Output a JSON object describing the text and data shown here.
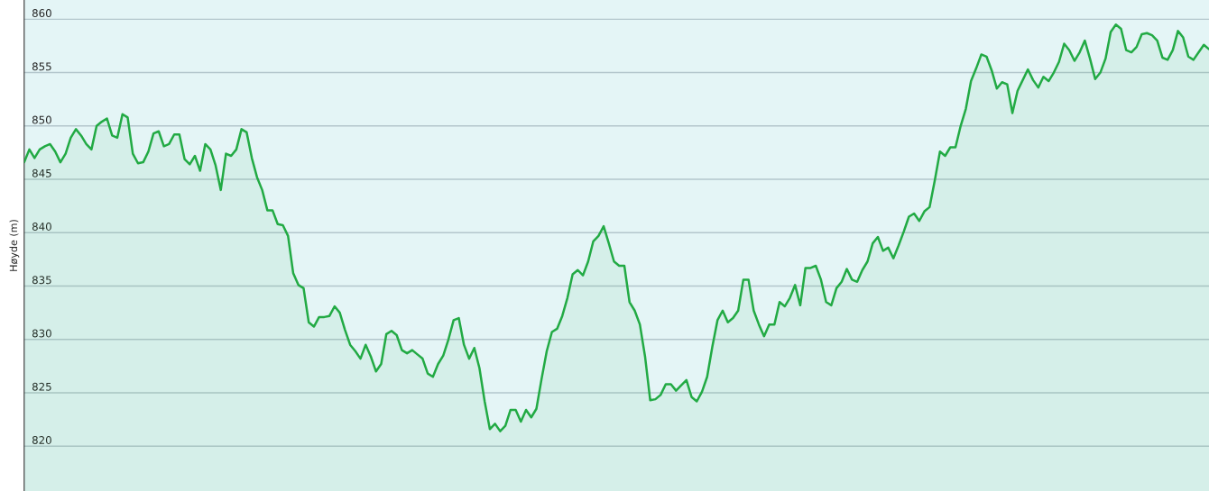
{
  "chart_data": {
    "type": "area",
    "ylabel": "Høyde (m)",
    "categories": [
      null,
      null,
      null,
      null,
      null,
      null,
      null,
      null,
      null,
      null,
      null,
      null,
      null,
      null,
      null,
      null,
      null,
      null,
      null,
      null,
      null,
      null,
      null,
      null,
      null,
      null,
      null,
      null,
      null,
      null,
      null,
      null,
      null,
      null,
      null,
      null,
      null,
      null,
      null,
      null,
      null,
      null,
      null,
      null,
      null,
      null,
      null,
      null,
      null,
      null,
      null,
      null,
      null,
      null,
      null,
      null,
      null,
      null,
      null,
      null,
      null,
      null,
      null,
      null,
      null,
      null,
      null,
      null,
      null,
      null,
      null,
      null,
      null,
      null,
      null,
      null,
      null,
      null,
      null,
      null,
      null,
      null,
      null,
      null,
      null,
      null,
      null,
      null,
      null,
      null,
      null,
      null,
      null,
      null,
      null,
      null,
      null,
      null,
      null,
      null,
      null,
      null,
      null,
      null,
      null,
      null,
      null,
      null,
      null,
      null,
      null,
      null,
      null,
      null,
      null,
      null,
      null,
      null,
      null,
      null,
      null,
      null,
      null,
      null,
      null,
      null,
      null,
      null,
      null,
      null,
      null,
      null,
      null,
      null,
      null,
      null,
      null,
      null,
      null,
      null,
      null,
      null,
      null,
      null,
      null,
      null,
      null,
      null,
      null,
      null,
      null,
      null,
      null,
      null,
      null,
      null,
      null,
      null,
      null,
      null,
      null,
      null,
      null,
      null,
      null,
      null,
      null,
      null,
      null,
      null,
      null,
      null,
      null,
      null,
      null,
      null,
      null,
      null,
      null,
      null,
      null,
      null,
      null,
      null,
      null,
      null,
      null,
      null,
      null,
      null,
      null,
      null,
      null,
      null,
      null,
      null,
      null,
      null,
      null,
      null,
      null,
      null,
      null,
      null,
      null,
      null,
      null,
      null,
      null,
      null,
      null,
      null,
      null,
      null,
      null,
      null,
      null,
      null,
      null,
      null,
      null,
      null,
      null,
      null,
      null,
      null,
      null,
      null,
      null,
      null
    ],
    "series": [
      {
        "color": "#22aa44",
        "values": [
          846.6,
          847.8,
          847,
          847.8,
          848.1,
          848.3,
          847.6,
          846.6,
          847.4,
          848.9,
          849.7,
          849.1,
          848.3,
          847.8,
          850,
          850.4,
          850.7,
          849.1,
          848.9,
          851.1,
          850.8,
          847.4,
          846.5,
          846.6,
          847.6,
          849.3,
          849.5,
          848.1,
          848.3,
          849.2,
          849.2,
          846.9,
          846.4,
          847.2,
          845.8,
          848.3,
          847.8,
          846.3,
          844,
          847.4,
          847.2,
          847.8,
          849.7,
          849.4,
          847,
          845.2,
          844,
          842.1,
          842.1,
          840.8,
          840.7,
          839.7,
          836.2,
          835.1,
          834.8,
          831.6,
          831.2,
          832.1,
          832.1,
          832.2,
          833.1,
          832.5,
          830.9,
          829.5,
          828.9,
          828.2,
          829.5,
          828.4,
          827,
          827.7,
          830.5,
          830.8,
          830.4,
          829,
          828.7,
          829,
          828.6,
          828.2,
          826.8,
          826.5,
          827.7,
          828.5,
          830,
          831.8,
          832,
          829.5,
          828.2,
          829.2,
          827.3,
          824.2,
          821.6,
          822.1,
          821.4,
          821.9,
          823.4,
          823.4,
          822.3,
          823.4,
          822.7,
          823.5,
          826.3,
          828.9,
          830.7,
          831,
          832.2,
          833.9,
          836.1,
          836.5,
          836,
          837.3,
          839.2,
          839.7,
          840.6,
          839,
          837.3,
          836.9,
          836.9,
          833.5,
          832.7,
          831.4,
          828.4,
          824.3,
          824.4,
          824.8,
          825.8,
          825.8,
          825.2,
          825.7,
          826.2,
          824.6,
          824.2,
          825.1,
          826.5,
          829.3,
          831.8,
          832.7,
          831.6,
          832,
          832.7,
          835.6,
          835.6,
          832.7,
          831.4,
          830.3,
          831.4,
          831.4,
          833.5,
          833.1,
          833.9,
          835.1,
          833.2,
          836.7,
          836.7,
          836.9,
          835.6,
          833.5,
          833.2,
          834.8,
          835.4,
          836.6,
          835.6,
          835.4,
          836.5,
          837.3,
          839,
          839.6,
          838.3,
          838.6,
          837.6,
          838.8,
          840.1,
          841.5,
          841.8,
          841.1,
          842,
          842.4,
          844.9,
          847.6,
          847.2,
          848,
          848,
          850,
          851.6,
          854.2,
          855.4,
          856.7,
          856.5,
          855.2,
          853.5,
          854.1,
          853.9,
          851.2,
          853.3,
          854.3,
          855.3,
          854.3,
          853.6,
          854.6,
          854.2,
          855,
          856,
          857.7,
          857.1,
          856.1,
          856.9,
          858,
          856.3,
          854.4,
          855,
          856.3,
          858.8,
          859.5,
          859.1,
          857.1,
          856.9,
          857.4,
          858.6,
          858.7,
          858.5,
          858,
          856.4,
          856.2,
          857.1,
          858.9,
          858.3,
          856.5,
          856.2,
          856.9,
          857.6,
          857.2
        ]
      }
    ],
    "ylim": [
      815.8,
      861.8
    ],
    "yticks": [
      820,
      825,
      830,
      835,
      840,
      845,
      850,
      855,
      860
    ],
    "grid": "y",
    "tick_labels": "y"
  }
}
